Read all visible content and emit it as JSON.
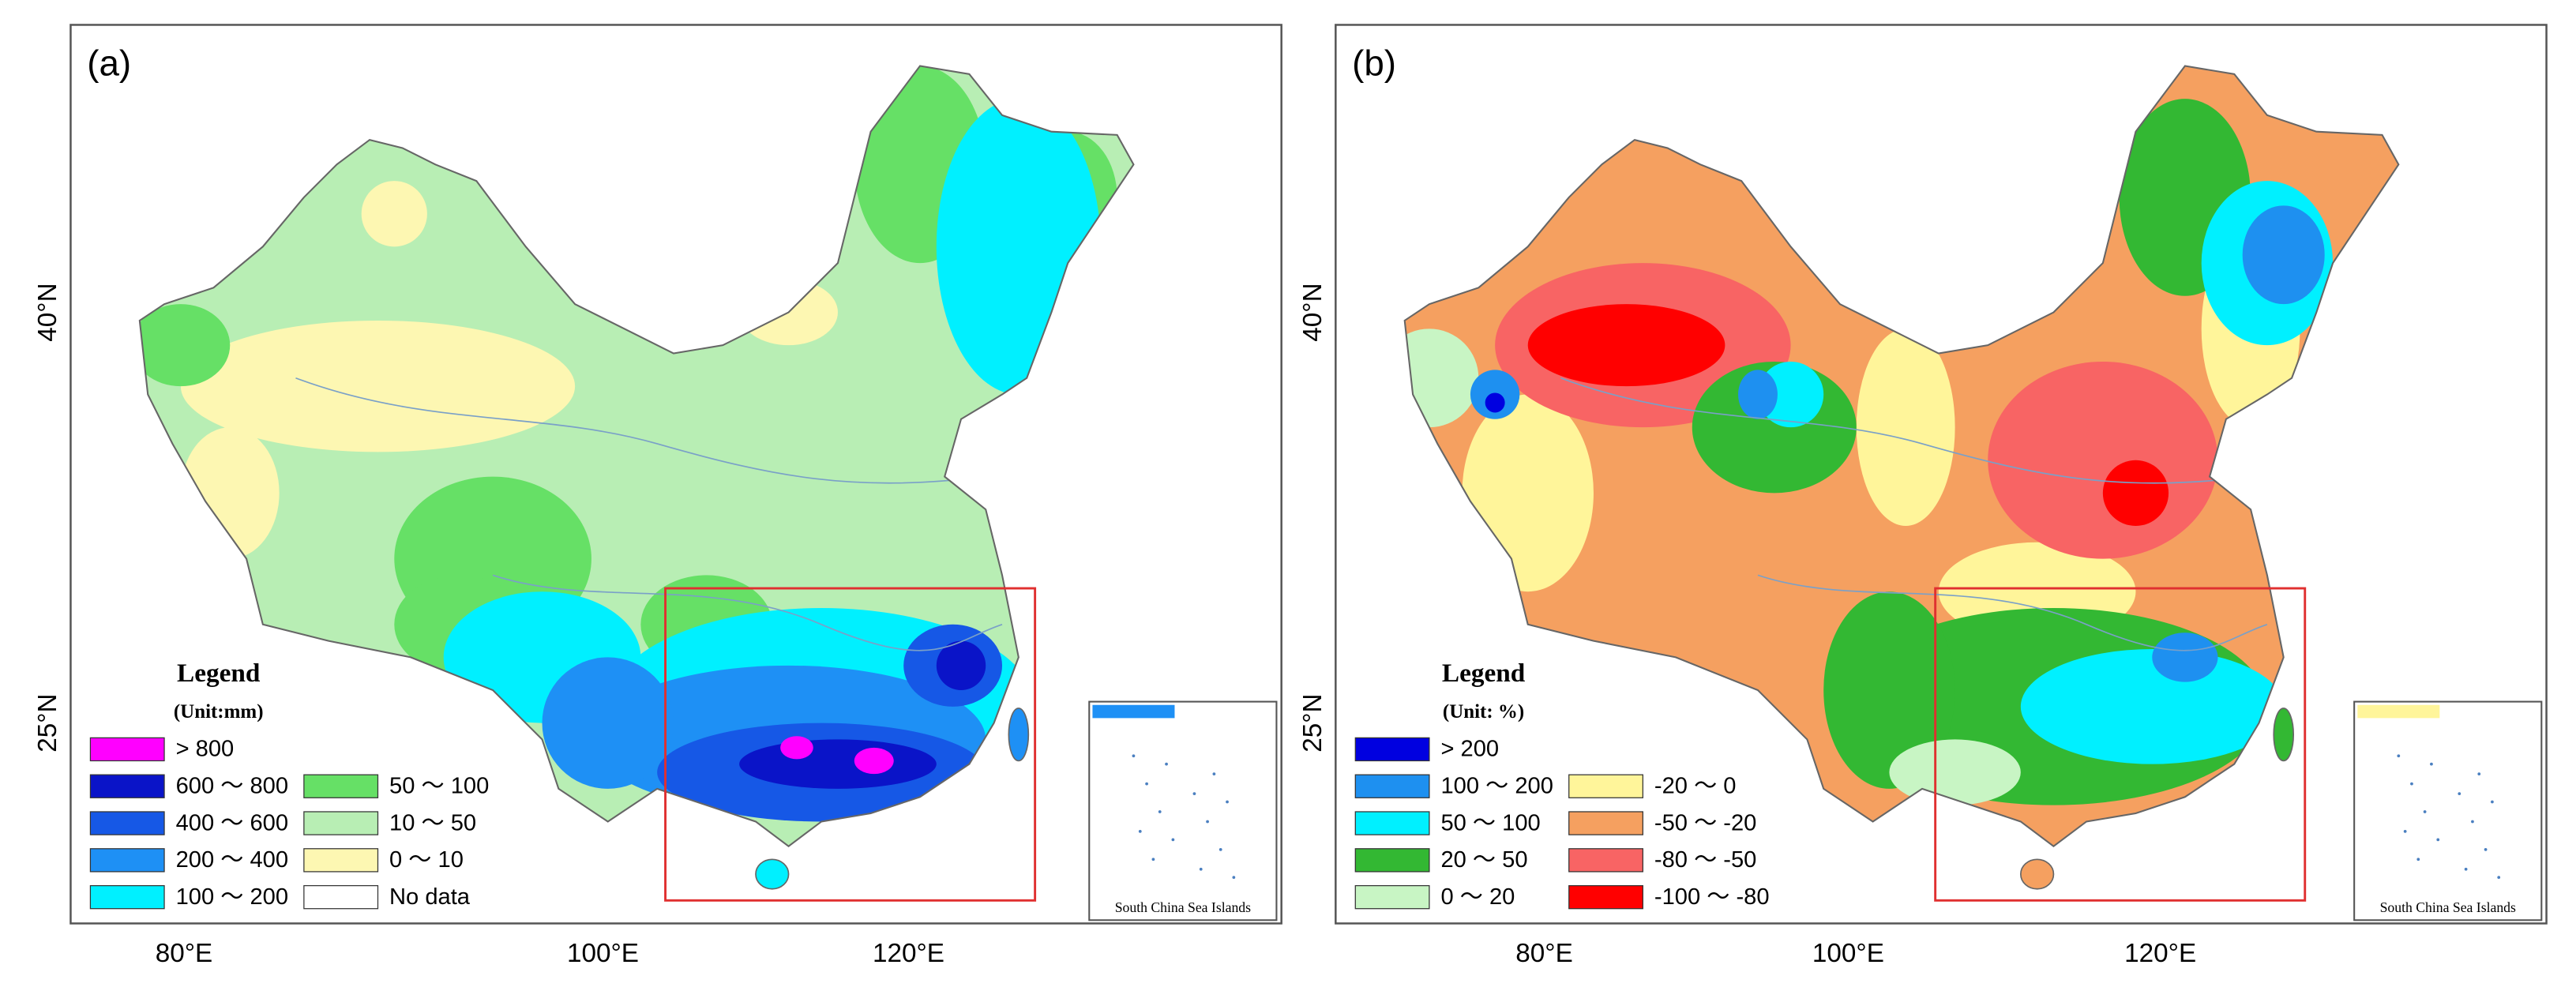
{
  "panels": [
    {
      "label": "(a)",
      "lon_labels": [
        "80°E",
        "100°E",
        "120°E"
      ],
      "lat_labels": [
        "40°N",
        "25°N"
      ],
      "inset": "South China Sea Islands",
      "legend": {
        "title": "Legend",
        "unit": "(Unit:mm)",
        "items": [
          {
            "label": "> 800",
            "color": "#ff00ff"
          },
          {
            "label": "600 ～ 800",
            "color": "#0a14c8"
          },
          {
            "label": "400 ～ 600",
            "color": "#1658e6"
          },
          {
            "label": "200 ～ 400",
            "color": "#1e90f5"
          },
          {
            "label": "100 ～ 200",
            "color": "#00f0ff"
          },
          {
            "label": "50 ～ 100",
            "color": "#66e066"
          },
          {
            "label": "10 ～ 50",
            "color": "#b8eeb4"
          },
          {
            "label": "0 ～ 10",
            "color": "#fdf7b2"
          },
          {
            "label": "No data",
            "color": "#ffffff"
          }
        ]
      }
    },
    {
      "label": "(b)",
      "lon_labels": [
        "80°E",
        "100°E",
        "120°E"
      ],
      "lat_labels": [
        "40°N",
        "25°N"
      ],
      "inset": "South China Sea Islands",
      "legend": {
        "title": "Legend",
        "unit": "(Unit: %)",
        "items": [
          {
            "label": "> 200",
            "color": "#0000e0"
          },
          {
            "label": "100 ～ 200",
            "color": "#1e90f0"
          },
          {
            "label": "50 ～ 100",
            "color": "#00f0ff"
          },
          {
            "label": "20 ～ 50",
            "color": "#33b833"
          },
          {
            "label": "0 ～ 20",
            "color": "#c8f5c4"
          },
          {
            "label": "-20 ～ 0",
            "color": "#fff59a"
          },
          {
            "label": "-50 ～ -20",
            "color": "#f5a060"
          },
          {
            "label": "-80 ～ -50",
            "color": "#f86464"
          },
          {
            "label": "-100 ～ -80",
            "color": "#ff0000"
          }
        ]
      }
    }
  ]
}
